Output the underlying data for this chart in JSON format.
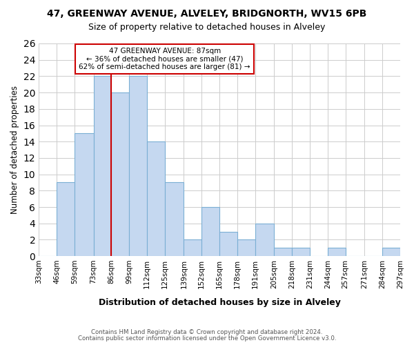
{
  "title": "47, GREENWAY AVENUE, ALVELEY, BRIDGNORTH, WV15 6PB",
  "subtitle": "Size of property relative to detached houses in Alveley",
  "xlabel": "Distribution of detached houses by size in Alveley",
  "ylabel": "Number of detached properties",
  "bin_edges": [
    33,
    46,
    59,
    73,
    86,
    99,
    112,
    125,
    139,
    152,
    165,
    178,
    191,
    205,
    218,
    231,
    244,
    257,
    271,
    284,
    297
  ],
  "bin_labels": [
    "33sqm",
    "46sqm",
    "59sqm",
    "73sqm",
    "86sqm",
    "99sqm",
    "112sqm",
    "125sqm",
    "139sqm",
    "152sqm",
    "165sqm",
    "178sqm",
    "191sqm",
    "205sqm",
    "218sqm",
    "231sqm",
    "244sqm",
    "257sqm",
    "271sqm",
    "284sqm",
    "297sqm"
  ],
  "bar_heights": [
    0,
    9,
    15,
    22,
    20,
    22,
    14,
    9,
    2,
    6,
    3,
    2,
    4,
    1,
    1,
    0,
    1,
    0,
    0,
    1
  ],
  "bar_color": "#c5d8f0",
  "bar_edgecolor": "#7bafd4",
  "grid_color": "#cccccc",
  "vline_x": 86,
  "vline_color": "#cc0000",
  "ylim": [
    0,
    26
  ],
  "yticks": [
    0,
    2,
    4,
    6,
    8,
    10,
    12,
    14,
    16,
    18,
    20,
    22,
    24,
    26
  ],
  "annotation_text": "47 GREENWAY AVENUE: 87sqm\n← 36% of detached houses are smaller (47)\n62% of semi-detached houses are larger (81) →",
  "annotation_box_edgecolor": "#cc0000",
  "footnote1": "Contains HM Land Registry data © Crown copyright and database right 2024.",
  "footnote2": "Contains public sector information licensed under the Open Government Licence v3.0.",
  "background_color": "#ffffff"
}
